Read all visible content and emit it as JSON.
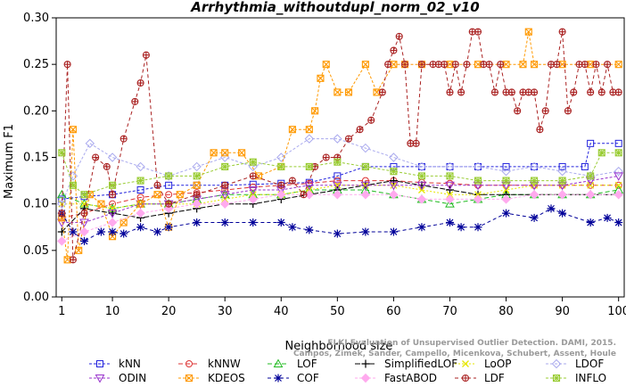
{
  "chart_data": {
    "type": "line",
    "title": "Arrhythmia_withoutdupl_norm_02_v10",
    "xlabel": "Neighborhood size",
    "ylabel": "Maximum F1",
    "xlim": [
      0,
      101
    ],
    "ylim": [
      0,
      0.3
    ],
    "xticks": [
      1,
      10,
      20,
      30,
      40,
      50,
      60,
      70,
      80,
      90,
      100
    ],
    "xtick_labels": [
      "1",
      "10",
      "20",
      "30",
      "40",
      "50",
      "60",
      "70",
      "80",
      "90",
      "100"
    ],
    "yticks": [
      0.0,
      0.05,
      0.1,
      0.15,
      0.2,
      0.25,
      0.3
    ],
    "ytick_labels": [
      "0.00",
      "0.05",
      "0.10",
      "0.15",
      "0.20",
      "0.25",
      "0.30"
    ],
    "grid": false,
    "legend_position": "bottom",
    "watermark": {
      "line1": "ELKI Evaluation of Unsupervised Outlier Detection. DAMI, 2015.",
      "line2": "Campos, Zimek, Sander, Campello, Micenkova, Schubert, Assent, Houle"
    },
    "series": [
      {
        "name": "kNN",
        "color": "#2222dd",
        "marker": "square",
        "dash": "3,2",
        "x": [
          1,
          5,
          10,
          15,
          20,
          25,
          30,
          35,
          40,
          45,
          50,
          55,
          60,
          65,
          70,
          75,
          80,
          85,
          90,
          94,
          95,
          100
        ],
        "y": [
          0.105,
          0.108,
          0.11,
          0.115,
          0.12,
          0.12,
          0.12,
          0.121,
          0.122,
          0.123,
          0.13,
          0.14,
          0.14,
          0.14,
          0.14,
          0.14,
          0.14,
          0.14,
          0.14,
          0.14,
          0.165,
          0.165
        ]
      },
      {
        "name": "kNNW",
        "color": "#dd3333",
        "marker": "circle",
        "dash": "5,3",
        "x": [
          1,
          5,
          10,
          15,
          20,
          25,
          30,
          35,
          40,
          45,
          50,
          55,
          60,
          65,
          70,
          75,
          80,
          85,
          90,
          95,
          100
        ],
        "y": [
          0.085,
          0.09,
          0.1,
          0.107,
          0.11,
          0.112,
          0.115,
          0.118,
          0.12,
          0.122,
          0.125,
          0.125,
          0.125,
          0.123,
          0.122,
          0.12,
          0.12,
          0.12,
          0.12,
          0.12,
          0.12
        ]
      },
      {
        "name": "LOF",
        "color": "#22bb22",
        "marker": "triangle-up",
        "dash": "5,3",
        "x": [
          1,
          5,
          10,
          15,
          20,
          25,
          30,
          35,
          40,
          45,
          50,
          55,
          60,
          65,
          70,
          75,
          80,
          85,
          90,
          95,
          100
        ],
        "y": [
          0.11,
          0.1,
          0.095,
          0.1,
          0.1,
          0.105,
          0.11,
          0.11,
          0.11,
          0.115,
          0.115,
          0.115,
          0.11,
          0.105,
          0.1,
          0.105,
          0.11,
          0.11,
          0.11,
          0.11,
          0.115
        ]
      },
      {
        "name": "SimplifiedLOF",
        "color": "#000000",
        "marker": "plus",
        "dash": "6,2",
        "x": [
          1,
          5,
          10,
          15,
          20,
          25,
          30,
          35,
          40,
          45,
          50,
          55,
          60,
          65,
          70,
          75,
          80,
          85,
          90,
          95,
          100
        ],
        "y": [
          0.07,
          0.095,
          0.09,
          0.085,
          0.09,
          0.095,
          0.1,
          0.1,
          0.105,
          0.11,
          0.115,
          0.12,
          0.125,
          0.12,
          0.115,
          0.11,
          0.11,
          0.11,
          0.11,
          0.11,
          0.11
        ]
      },
      {
        "name": "LoOP",
        "color": "#e6e600",
        "marker": "cross",
        "dash": "2,2",
        "x": [
          1,
          5,
          10,
          15,
          20,
          25,
          30,
          35,
          40,
          45,
          50,
          55,
          60,
          65,
          70,
          75,
          80,
          85,
          90,
          95,
          100
        ],
        "y": [
          0.1,
          0.1,
          0.095,
          0.1,
          0.1,
          0.1,
          0.105,
          0.11,
          0.11,
          0.115,
          0.12,
          0.12,
          0.12,
          0.115,
          0.11,
          0.11,
          0.115,
          0.12,
          0.12,
          0.12,
          0.12
        ]
      },
      {
        "name": "LDOF",
        "color": "#aaaaee",
        "marker": "diamond",
        "dash": "3,2",
        "x": [
          1,
          3,
          6,
          10,
          15,
          20,
          25,
          30,
          35,
          40,
          45,
          50,
          55,
          60,
          65,
          70,
          75,
          80,
          85,
          90,
          95,
          100
        ],
        "y": [
          0.1,
          0.13,
          0.165,
          0.15,
          0.14,
          0.13,
          0.14,
          0.15,
          0.14,
          0.15,
          0.17,
          0.17,
          0.16,
          0.15,
          0.14,
          0.14,
          0.14,
          0.135,
          0.14,
          0.135,
          0.13,
          0.135
        ]
      },
      {
        "name": "ODIN",
        "color": "#9933cc",
        "marker": "triangle-down",
        "dash": "3,2",
        "x": [
          1,
          5,
          10,
          15,
          20,
          25,
          30,
          35,
          40,
          45,
          50,
          55,
          60,
          65,
          70,
          75,
          80,
          85,
          90,
          95,
          100
        ],
        "y": [
          0.08,
          0.08,
          0.09,
          0.1,
          0.1,
          0.105,
          0.11,
          0.115,
          0.115,
          0.12,
          0.12,
          0.12,
          0.12,
          0.12,
          0.12,
          0.12,
          0.12,
          0.12,
          0.12,
          0.125,
          0.13
        ]
      },
      {
        "name": "KDEOS",
        "color": "#ff9900",
        "marker": "square-x",
        "dash": "3,2",
        "x": [
          1,
          2,
          3,
          4,
          6,
          8,
          10,
          12,
          15,
          18,
          20,
          22,
          25,
          28,
          30,
          33,
          36,
          40,
          42,
          45,
          46,
          47,
          48,
          50,
          52,
          55,
          57,
          60,
          62,
          65,
          70,
          75,
          80,
          83,
          84,
          85,
          90,
          95,
          100
        ],
        "y": [
          0.085,
          0.04,
          0.18,
          0.05,
          0.11,
          0.1,
          0.065,
          0.08,
          0.1,
          0.11,
          0.075,
          0.11,
          0.12,
          0.155,
          0.155,
          0.155,
          0.13,
          0.14,
          0.18,
          0.18,
          0.2,
          0.235,
          0.25,
          0.22,
          0.22,
          0.25,
          0.22,
          0.25,
          0.25,
          0.25,
          0.25,
          0.25,
          0.25,
          0.25,
          0.285,
          0.25,
          0.25,
          0.25,
          0.25
        ]
      },
      {
        "name": "COF",
        "color": "#000099",
        "marker": "asterisk",
        "dash": "4,3",
        "x": [
          1,
          3,
          5,
          8,
          10,
          12,
          15,
          18,
          20,
          25,
          30,
          35,
          40,
          42,
          45,
          50,
          55,
          60,
          65,
          70,
          72,
          75,
          80,
          85,
          88,
          90,
          95,
          98,
          100
        ],
        "y": [
          0.09,
          0.07,
          0.06,
          0.07,
          0.07,
          0.068,
          0.075,
          0.07,
          0.075,
          0.08,
          0.08,
          0.08,
          0.08,
          0.075,
          0.072,
          0.068,
          0.07,
          0.07,
          0.075,
          0.08,
          0.075,
          0.075,
          0.09,
          0.085,
          0.095,
          0.09,
          0.08,
          0.085,
          0.08
        ]
      },
      {
        "name": "FastABOD",
        "color": "#ffaaee",
        "marker": "diamond-filled",
        "dash": "3,2",
        "x": [
          1,
          5,
          10,
          15,
          20,
          25,
          30,
          35,
          40,
          45,
          50,
          55,
          60,
          65,
          70,
          75,
          80,
          85,
          90,
          95,
          100
        ],
        "y": [
          0.06,
          0.07,
          0.08,
          0.09,
          0.095,
          0.1,
          0.1,
          0.105,
          0.11,
          0.11,
          0.11,
          0.11,
          0.11,
          0.105,
          0.105,
          0.105,
          0.105,
          0.11,
          0.11,
          0.11,
          0.11
        ]
      },
      {
        "name": "LDF",
        "color": "#aa2222",
        "marker": "circle-plus",
        "dash": "4,3",
        "x": [
          1,
          2,
          3,
          5,
          7,
          9,
          10,
          12,
          14,
          15,
          16,
          18,
          20,
          25,
          30,
          35,
          40,
          42,
          44,
          46,
          48,
          50,
          52,
          54,
          56,
          58,
          59,
          60,
          61,
          62,
          63,
          64,
          65,
          67,
          68,
          69,
          70,
          71,
          72,
          73,
          74,
          75,
          76,
          77,
          78,
          79,
          80,
          81,
          82,
          83,
          84,
          85,
          86,
          87,
          88,
          89,
          90,
          91,
          92,
          93,
          94,
          95,
          96,
          97,
          98,
          99,
          100
        ],
        "y": [
          0.09,
          0.25,
          0.04,
          0.09,
          0.15,
          0.14,
          0.11,
          0.17,
          0.21,
          0.23,
          0.26,
          0.12,
          0.1,
          0.11,
          0.12,
          0.13,
          0.12,
          0.125,
          0.11,
          0.14,
          0.15,
          0.15,
          0.17,
          0.18,
          0.19,
          0.22,
          0.25,
          0.265,
          0.28,
          0.25,
          0.165,
          0.165,
          0.25,
          0.25,
          0.25,
          0.25,
          0.22,
          0.25,
          0.22,
          0.25,
          0.285,
          0.285,
          0.25,
          0.25,
          0.22,
          0.25,
          0.22,
          0.22,
          0.2,
          0.22,
          0.22,
          0.22,
          0.18,
          0.2,
          0.25,
          0.25,
          0.285,
          0.2,
          0.22,
          0.25,
          0.25,
          0.22,
          0.25,
          0.22,
          0.25,
          0.22,
          0.22
        ]
      },
      {
        "name": "INFLO",
        "color": "#99cc33",
        "marker": "square-star",
        "dash": "3,2",
        "x": [
          1,
          3,
          5,
          10,
          15,
          20,
          25,
          30,
          35,
          40,
          45,
          50,
          55,
          60,
          65,
          70,
          75,
          80,
          85,
          90,
          95,
          97,
          100
        ],
        "y": [
          0.155,
          0.12,
          0.11,
          0.12,
          0.125,
          0.13,
          0.13,
          0.14,
          0.145,
          0.14,
          0.14,
          0.145,
          0.14,
          0.135,
          0.13,
          0.13,
          0.125,
          0.125,
          0.125,
          0.125,
          0.13,
          0.155,
          0.155
        ]
      }
    ]
  }
}
